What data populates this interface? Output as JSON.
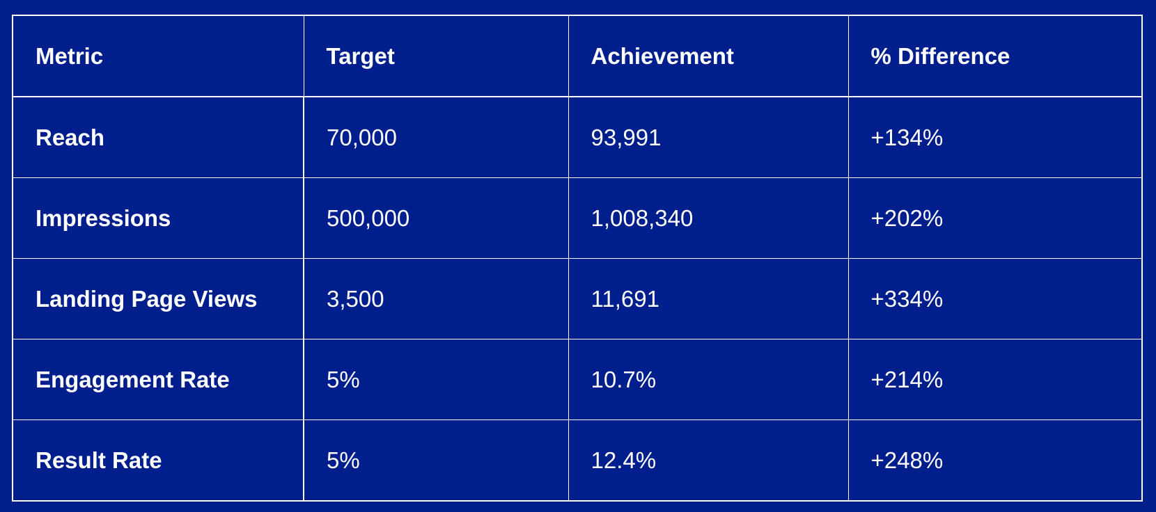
{
  "table": {
    "headers": [
      "Metric",
      "Target",
      "Achievement",
      "% Difference"
    ],
    "rows": [
      [
        "Reach",
        "70,000",
        "93,991",
        "+134%"
      ],
      [
        "Impressions",
        "500,000",
        "1,008,340",
        "+202%"
      ],
      [
        "Landing Page Views",
        "3,500",
        "11,691",
        "+334%"
      ],
      [
        "Engagement Rate",
        "5%",
        "10.7%",
        "+214%"
      ],
      [
        "Result Rate",
        "5%",
        "12.4%",
        "+248%"
      ]
    ]
  },
  "colors": {
    "background": "#001e8c",
    "text": "#ffffff",
    "grid": "#ffffff"
  }
}
